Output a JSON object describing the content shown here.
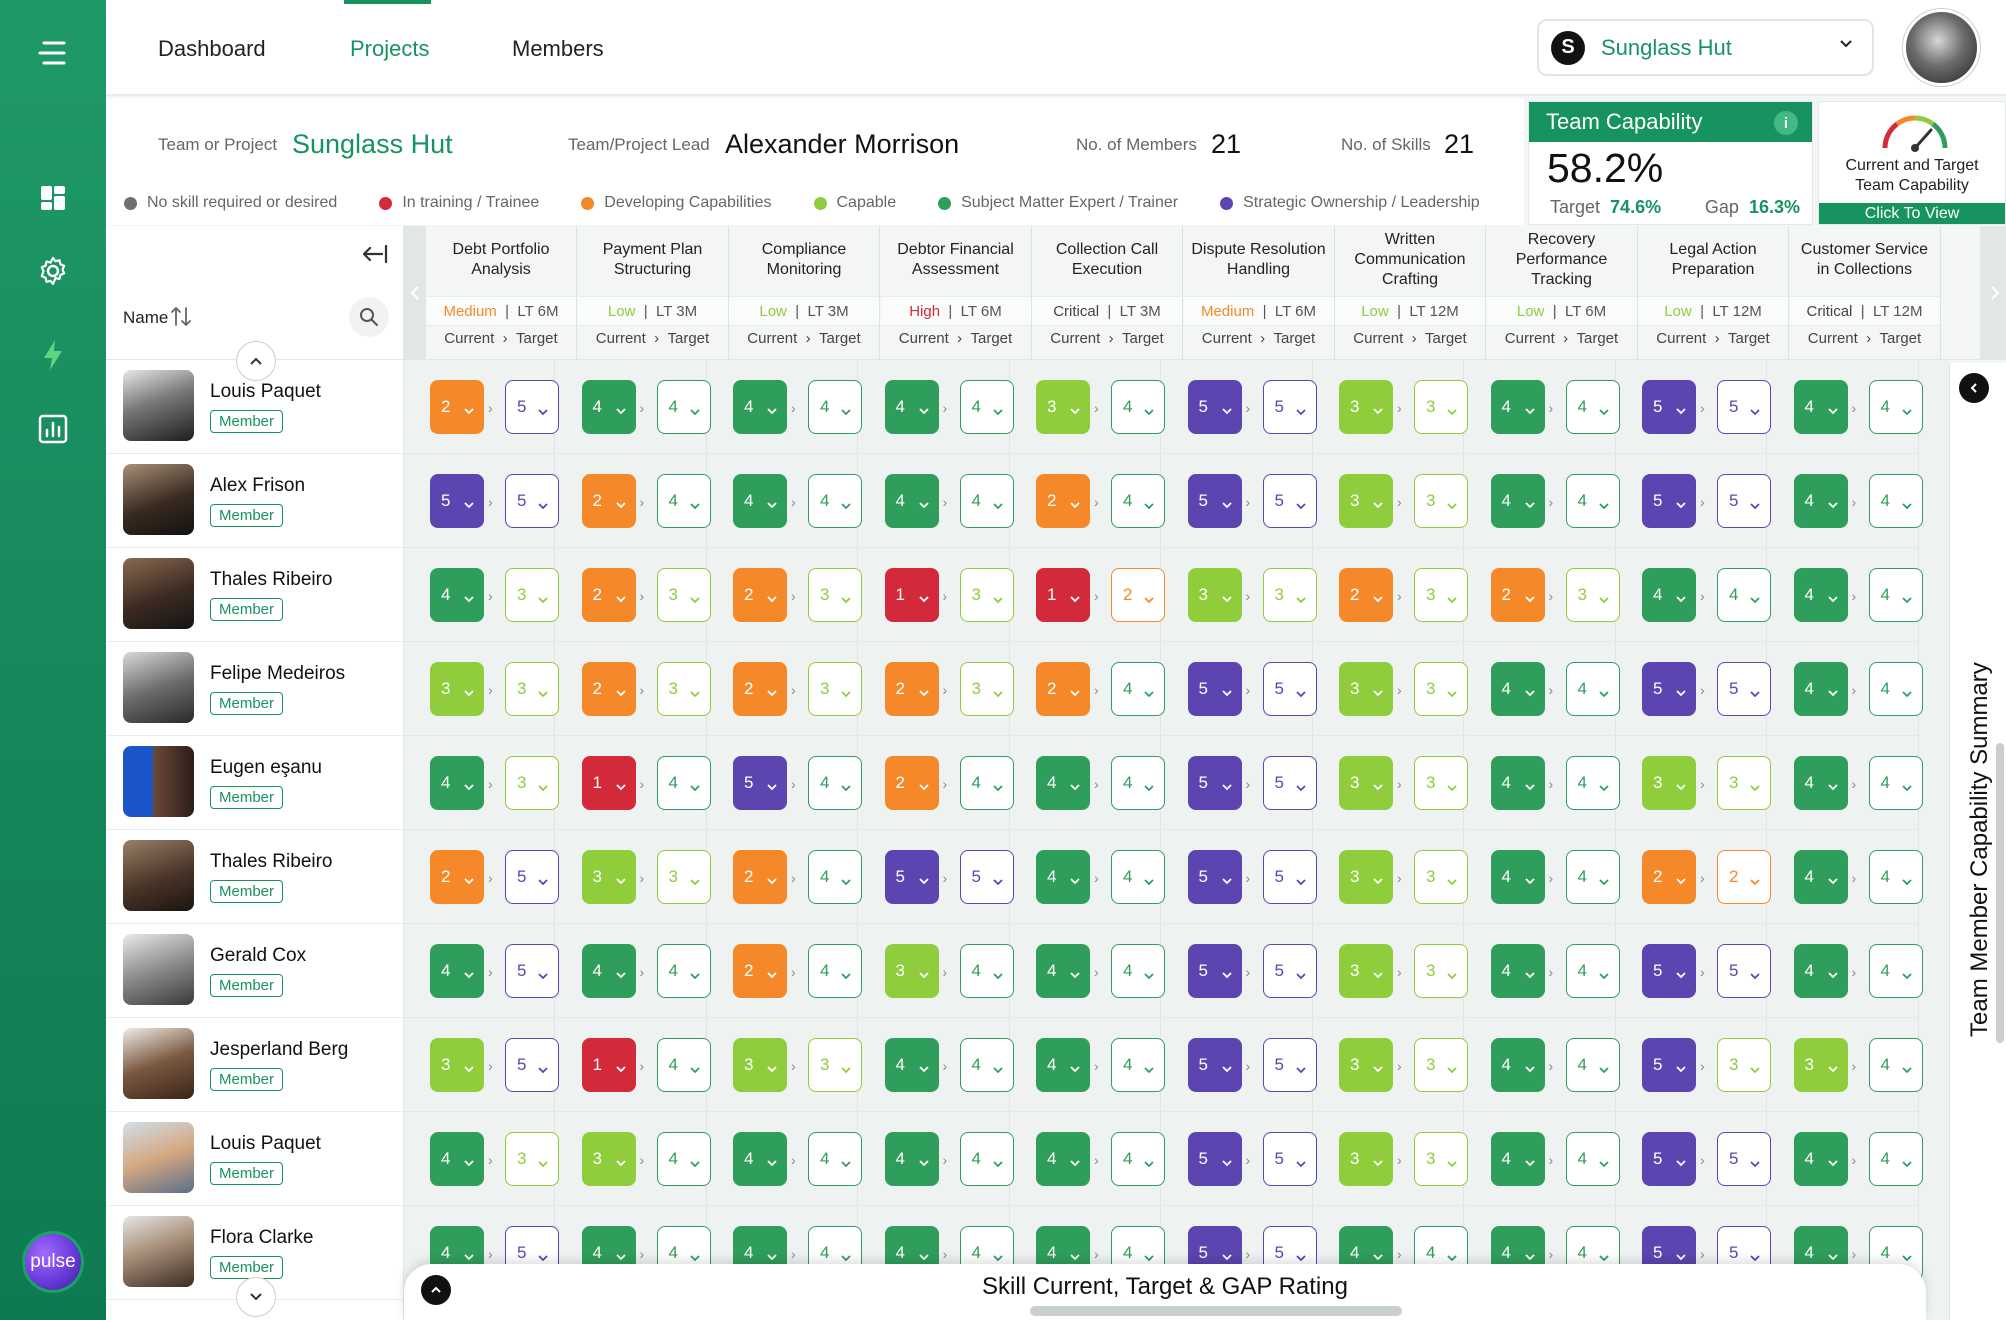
{
  "nav": {
    "tabs": [
      "Dashboard",
      "Projects",
      "Members"
    ],
    "active": "Projects",
    "org_select": {
      "logo": "S",
      "name": "Sunglass Hut"
    }
  },
  "info": {
    "team_label": "Team or Project",
    "team_value": "Sunglass Hut",
    "lead_label": "Team/Project Lead",
    "lead_value": "Alexander Morrison",
    "members_label": "No. of Members",
    "members_value": "21",
    "skills_label": "No. of Skills",
    "skills_value": "21"
  },
  "legend": [
    {
      "label": "No skill required or desired",
      "color": "#6f6f6f"
    },
    {
      "label": "In training / Trainee",
      "color": "#d22a3a"
    },
    {
      "label": "Developing Capabilities",
      "color": "#f5892a"
    },
    {
      "label": "Capable",
      "color": "#8fcd3d"
    },
    {
      "label": "Subject Matter Expert / Trainer",
      "color": "#2f9e5c"
    },
    {
      "label": "Strategic Ownership / Leadership",
      "color": "#5c45b0"
    }
  ],
  "capability": {
    "title": "Team Capability",
    "info": "i",
    "value": "58.2%",
    "target_label": "Target",
    "target_value": "74.6%",
    "gap_label": "Gap",
    "gap_value": "16.3%"
  },
  "view_card": {
    "line1": "Current and Target",
    "line2": "Team Capability",
    "button": "Click To View"
  },
  "grid": {
    "name_header": "Name",
    "current_label": "Current",
    "target_label": "Target",
    "skills": [
      {
        "name": "Debt Portfolio Analysis",
        "priority": "Medium",
        "term": "LT 6M"
      },
      {
        "name": "Payment Plan Structuring",
        "priority": "Low",
        "term": "LT 3M"
      },
      {
        "name": "Compliance Monitoring",
        "priority": "Low",
        "term": "LT 3M"
      },
      {
        "name": "Debtor Financial Assessment",
        "priority": "High",
        "term": "LT 6M"
      },
      {
        "name": "Collection Call Execution",
        "priority": "Critical",
        "term": "LT 3M"
      },
      {
        "name": "Dispute Resolution Handling",
        "priority": "Medium",
        "term": "LT 6M"
      },
      {
        "name": "Written Communication Crafting",
        "priority": "Low",
        "term": "LT 12M"
      },
      {
        "name": "Recovery Performance Tracking",
        "priority": "Low",
        "term": "LT 6M"
      },
      {
        "name": "Legal Action Preparation",
        "priority": "Low",
        "term": "LT 12M"
      },
      {
        "name": "Customer Service in Collections",
        "priority": "Critical",
        "term": "LT 12M"
      }
    ],
    "members": [
      {
        "name": "Louis Paquet",
        "role": "Member",
        "ratings": [
          [
            2,
            5
          ],
          [
            4,
            4
          ],
          [
            4,
            4
          ],
          [
            4,
            4
          ],
          [
            3,
            4
          ],
          [
            5,
            5
          ],
          [
            3,
            3
          ],
          [
            4,
            4
          ],
          [
            5,
            5
          ],
          [
            4,
            4
          ]
        ]
      },
      {
        "name": "Alex Frison",
        "role": "Member",
        "ratings": [
          [
            5,
            5
          ],
          [
            2,
            4
          ],
          [
            4,
            4
          ],
          [
            4,
            4
          ],
          [
            2,
            4
          ],
          [
            5,
            5
          ],
          [
            3,
            3
          ],
          [
            4,
            4
          ],
          [
            5,
            5
          ],
          [
            4,
            4
          ]
        ]
      },
      {
        "name": "Thales Ribeiro",
        "role": "Member",
        "ratings": [
          [
            4,
            3
          ],
          [
            2,
            3
          ],
          [
            2,
            3
          ],
          [
            1,
            3
          ],
          [
            1,
            2
          ],
          [
            3,
            3
          ],
          [
            2,
            3
          ],
          [
            2,
            3
          ],
          [
            4,
            4
          ],
          [
            4,
            4
          ]
        ]
      },
      {
        "name": "Felipe Medeiros",
        "role": "Member",
        "ratings": [
          [
            3,
            3
          ],
          [
            2,
            3
          ],
          [
            2,
            3
          ],
          [
            2,
            3
          ],
          [
            2,
            4
          ],
          [
            5,
            5
          ],
          [
            3,
            3
          ],
          [
            4,
            4
          ],
          [
            5,
            5
          ],
          [
            4,
            4
          ]
        ]
      },
      {
        "name": "Eugen eşanu",
        "role": "Member",
        "ratings": [
          [
            4,
            3
          ],
          [
            1,
            4
          ],
          [
            5,
            4
          ],
          [
            2,
            4
          ],
          [
            4,
            4
          ],
          [
            5,
            5
          ],
          [
            3,
            3
          ],
          [
            4,
            4
          ],
          [
            3,
            3
          ],
          [
            4,
            4
          ]
        ]
      },
      {
        "name": "Thales Ribeiro",
        "role": "Member",
        "ratings": [
          [
            2,
            5
          ],
          [
            3,
            3
          ],
          [
            2,
            4
          ],
          [
            5,
            5
          ],
          [
            4,
            4
          ],
          [
            5,
            5
          ],
          [
            3,
            3
          ],
          [
            4,
            4
          ],
          [
            2,
            2
          ],
          [
            4,
            4
          ]
        ]
      },
      {
        "name": "Gerald Cox",
        "role": "Member",
        "ratings": [
          [
            4,
            5
          ],
          [
            4,
            4
          ],
          [
            2,
            4
          ],
          [
            3,
            4
          ],
          [
            4,
            4
          ],
          [
            5,
            5
          ],
          [
            3,
            3
          ],
          [
            4,
            4
          ],
          [
            5,
            5
          ],
          [
            4,
            4
          ]
        ]
      },
      {
        "name": "Jesperland Berg",
        "role": "Member",
        "ratings": [
          [
            3,
            5
          ],
          [
            1,
            4
          ],
          [
            3,
            3
          ],
          [
            4,
            4
          ],
          [
            4,
            4
          ],
          [
            5,
            5
          ],
          [
            3,
            3
          ],
          [
            4,
            4
          ],
          [
            5,
            3
          ],
          [
            3,
            4
          ]
        ]
      },
      {
        "name": "Louis Paquet",
        "role": "Member",
        "ratings": [
          [
            4,
            3
          ],
          [
            3,
            4
          ],
          [
            4,
            4
          ],
          [
            4,
            4
          ],
          [
            4,
            4
          ],
          [
            5,
            5
          ],
          [
            3,
            3
          ],
          [
            4,
            4
          ],
          [
            5,
            5
          ],
          [
            4,
            4
          ]
        ]
      },
      {
        "name": "Flora Clarke",
        "role": "Member",
        "ratings": [
          [
            4,
            5
          ],
          [
            4,
            4
          ],
          [
            4,
            4
          ],
          [
            4,
            4
          ],
          [
            4,
            4
          ],
          [
            5,
            5
          ],
          [
            4,
            4
          ],
          [
            4,
            4
          ],
          [
            5,
            5
          ],
          [
            4,
            4
          ]
        ]
      }
    ]
  },
  "summary_panel": {
    "title": "Team Member Capability Summary"
  },
  "drawer": {
    "title": "Skill Current, Target & GAP Rating"
  },
  "brand": {
    "pulse": "pulse",
    "accent": "#17935f"
  }
}
